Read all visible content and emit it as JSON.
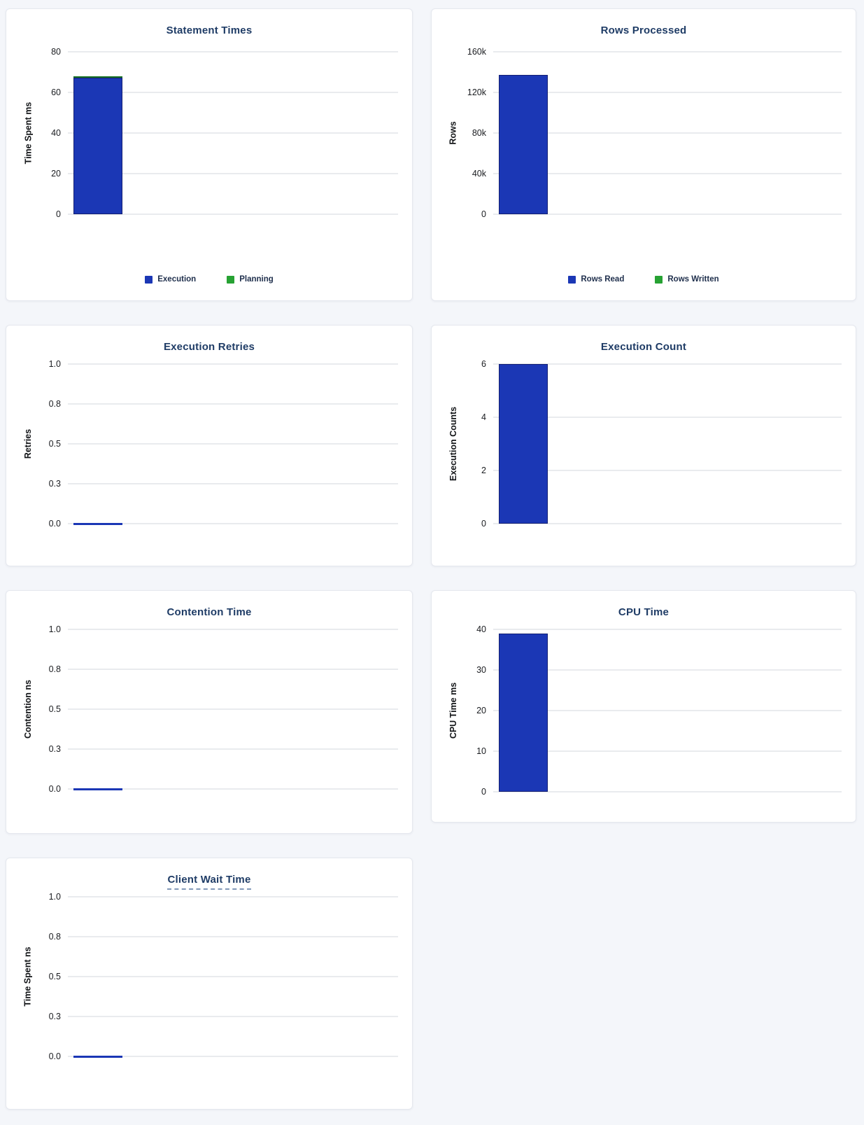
{
  "page": {
    "background_color": "#f4f6fa",
    "card_color": "#ffffff"
  },
  "colors": {
    "title_text": "#1f3c66",
    "bar_blue": "#1b37b5",
    "bar_blue_border": "#131f72",
    "bar_green": "#27a233",
    "bar_green_border": "#167023",
    "gridline": "#e9ebee",
    "tick_text": "#1a1c20"
  },
  "chart_data": [
    {
      "id": "statement-times",
      "type": "bar",
      "title": "Statement Times",
      "title_underlined": false,
      "ylabel": "Time Spent ms",
      "ymax": 80,
      "ylim": [
        0,
        80
      ],
      "grid": true,
      "yticks": [
        "80",
        "60",
        "40",
        "20",
        "0"
      ],
      "bars": [
        {
          "label": "Execution",
          "value": 67.3,
          "color": "#1b37b5",
          "border": "#131f72"
        },
        {
          "label": "Planning",
          "value": 0.7,
          "color": "#27a233",
          "border": "#167023"
        }
      ],
      "legend": [
        {
          "label": "Execution",
          "color": "#1b37b5"
        },
        {
          "label": "Planning",
          "color": "#27a233"
        }
      ],
      "legend_position": "bottom",
      "zero_line": false
    },
    {
      "id": "rows-processed",
      "type": "bar",
      "title": "Rows Processed",
      "title_underlined": false,
      "ylabel": "Rows",
      "ymax": 160000,
      "ylim": [
        0,
        160000
      ],
      "grid": true,
      "yticks": [
        "160k",
        "120k",
        "80k",
        "40k",
        "0"
      ],
      "bars": [
        {
          "label": "Rows Read",
          "value": 137000,
          "color": "#1b37b5",
          "border": "#131f72"
        }
      ],
      "legend": [
        {
          "label": "Rows Read",
          "color": "#1b37b5"
        },
        {
          "label": "Rows Written",
          "color": "#27a233"
        }
      ],
      "legend_position": "bottom",
      "zero_line": false
    },
    {
      "id": "execution-retries",
      "type": "bar",
      "title": "Execution Retries",
      "title_underlined": false,
      "ylabel": "Retries",
      "ymax": 1.0,
      "ylim": [
        0,
        1.0
      ],
      "grid": true,
      "yticks": [
        "1.0",
        "0.8",
        "0.5",
        "0.3",
        "0.0"
      ],
      "bars": [],
      "legend": [],
      "zero_value": 0,
      "zero_line": true
    },
    {
      "id": "execution-count",
      "type": "bar",
      "title": "Execution Count",
      "title_underlined": false,
      "ylabel": "Execution Counts",
      "ymax": 6,
      "ylim": [
        0,
        6
      ],
      "grid": true,
      "yticks": [
        "6",
        "4",
        "2",
        "0"
      ],
      "bars": [
        {
          "value": 6,
          "color": "#1b37b5",
          "border": "#131f72"
        }
      ],
      "legend": [],
      "zero_line": false
    },
    {
      "id": "contention-time",
      "type": "bar",
      "title": "Contention Time",
      "title_underlined": false,
      "ylabel": "Contention ns",
      "ymax": 1.0,
      "ylim": [
        0,
        1.0
      ],
      "grid": true,
      "yticks": [
        "1.0",
        "0.8",
        "0.5",
        "0.3",
        "0.0"
      ],
      "bars": [],
      "legend": [],
      "zero_value": 0,
      "zero_line": true
    },
    {
      "id": "cpu-time",
      "type": "bar",
      "title": "CPU Time",
      "title_underlined": false,
      "ylabel": "CPU Time ms",
      "ymax": 40,
      "ylim": [
        0,
        40
      ],
      "grid": true,
      "yticks": [
        "40",
        "30",
        "20",
        "10",
        "0"
      ],
      "bars": [
        {
          "value": 39,
          "color": "#1b37b5",
          "border": "#131f72"
        }
      ],
      "legend": [],
      "zero_line": false
    },
    {
      "id": "client-wait-time",
      "type": "bar",
      "title": "Client Wait Time",
      "title_underlined": true,
      "ylabel": "Time Spent ns",
      "ymax": 1.0,
      "ylim": [
        0,
        1.0
      ],
      "grid": true,
      "yticks": [
        "1.0",
        "0.8",
        "0.5",
        "0.3",
        "0.0"
      ],
      "bars": [],
      "legend": [],
      "zero_value": 0,
      "zero_line": true
    }
  ]
}
